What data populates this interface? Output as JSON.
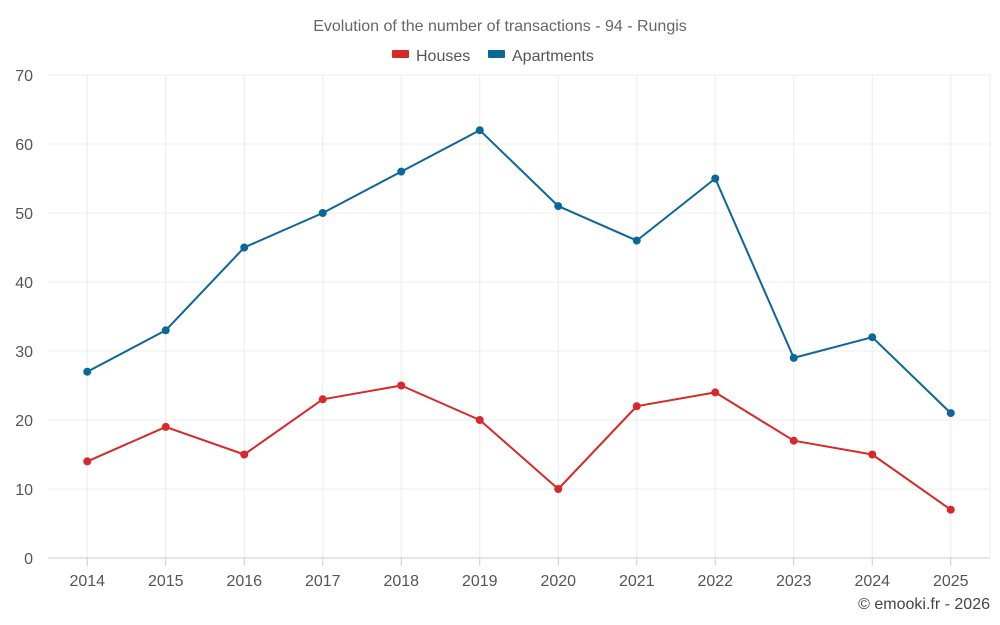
{
  "chart_data": {
    "type": "line",
    "title": "Evolution of the number of transactions - 94 - Rungis",
    "categories": [
      "2014",
      "2015",
      "2016",
      "2017",
      "2018",
      "2019",
      "2020",
      "2021",
      "2022",
      "2023",
      "2024",
      "2025"
    ],
    "series": [
      {
        "name": "Houses",
        "color": "#d62a2a",
        "values": [
          14,
          19,
          15,
          23,
          25,
          20,
          10,
          22,
          24,
          17,
          15,
          7
        ]
      },
      {
        "name": "Apartments",
        "color": "#0b6699",
        "values": [
          27,
          33,
          45,
          50,
          56,
          62,
          51,
          46,
          55,
          29,
          32,
          21
        ]
      }
    ],
    "ylim": [
      0,
      70
    ],
    "yticks": [
      0,
      10,
      20,
      30,
      40,
      50,
      60,
      70
    ],
    "grid": true,
    "legend_position": "top-center",
    "xlabel": "",
    "ylabel": ""
  },
  "credit": "© emooki.fr - 2026"
}
